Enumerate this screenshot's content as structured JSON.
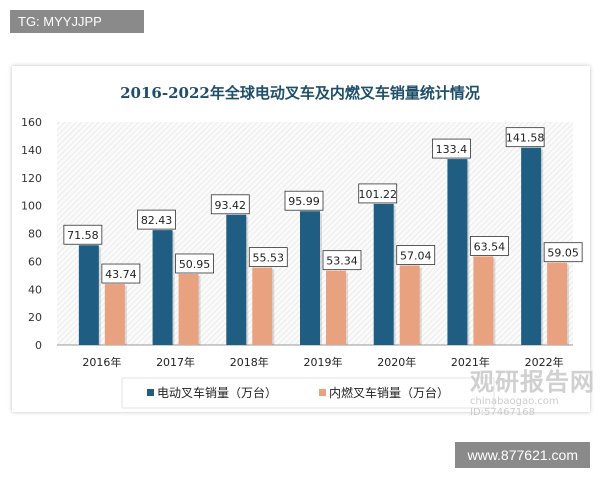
{
  "watermarks": {
    "top_left": "TG: MYYJJPP",
    "bottom_right": "www.877621.com",
    "logo": "观研报告网",
    "logo_sub": "chinabaogao.com ID:57467168"
  },
  "colors": {
    "electric": "#1f5e82",
    "combustion": "#e9a27f",
    "title": "#1f4e6a"
  },
  "chart_data": {
    "type": "bar",
    "title": "2016-2022年全球电动叉车及内燃叉车销量统计情况",
    "categories": [
      "2016年",
      "2017年",
      "2018年",
      "2019年",
      "2020年",
      "2021年",
      "2022年"
    ],
    "series": [
      {
        "name": "电动叉车销量（万台）",
        "values": [
          71.58,
          82.43,
          93.42,
          95.99,
          101.22,
          133.4,
          141.58
        ],
        "labels": [
          "71.58",
          "82.43",
          "93.42",
          "95.99",
          "101.22",
          "133.4",
          "141.58"
        ]
      },
      {
        "name": "内燃叉车销量（万台）",
        "values": [
          43.74,
          50.95,
          55.53,
          53.34,
          57.04,
          63.54,
          59.05
        ],
        "labels": [
          "43.74",
          "50.95",
          "55.53",
          "53.34",
          "57.04",
          "63.54",
          "59.05"
        ]
      }
    ],
    "yticks": [
      0,
      20,
      40,
      60,
      80,
      100,
      120,
      140,
      160
    ],
    "ylim": [
      0,
      160
    ],
    "grid": false,
    "legend": "bottom",
    "xlabel": "",
    "ylabel": ""
  }
}
